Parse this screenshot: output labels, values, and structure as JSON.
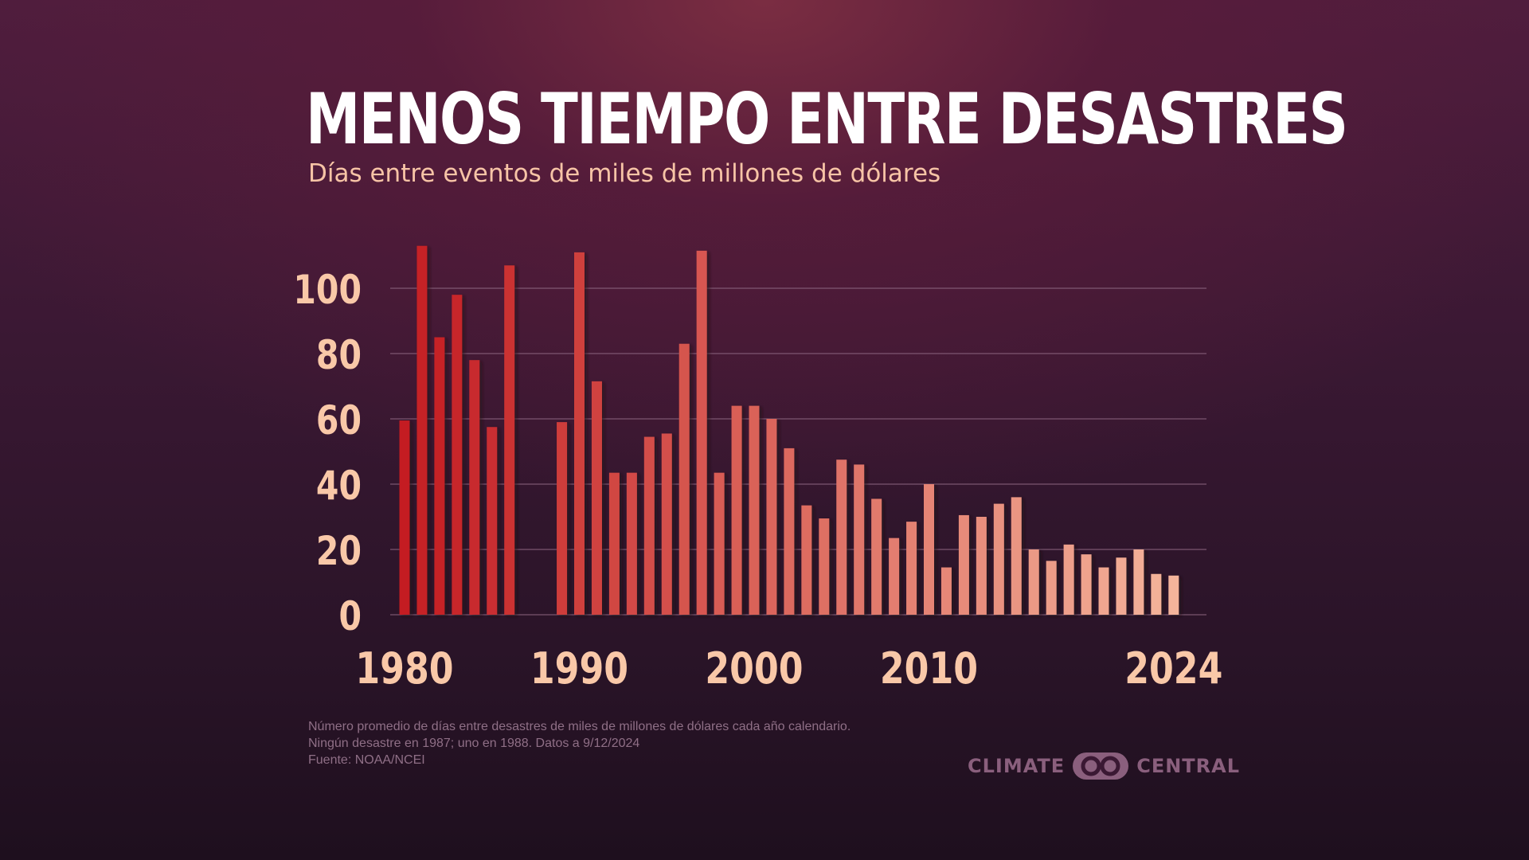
{
  "title": "MENOS TIEMPO ENTRE DESASTRES",
  "subtitle": "Días entre eventos de miles de millones de dólares",
  "notes": [
    "Número promedio de días entre desastres de miles de millones de dólares cada año calendario.",
    "Ningún desastre en 1987; uno en 1988. Datos a 9/12/2024",
    "Fuente: NOAA/NCEI"
  ],
  "logo": {
    "left_text": "CLIMATE",
    "right_text": "CENTRAL",
    "icon": "climate-central-logo-icon"
  },
  "colors": {
    "bar_start": "#c41d22",
    "bar_end": "#f4b49b",
    "tick_text": "#f9c8a8",
    "grid": "#8c6580"
  },
  "chart_data": {
    "type": "bar",
    "title": "MENOS TIEMPO ENTRE DESASTRES",
    "subtitle": "Días entre eventos de miles de millones de dólares",
    "xlabel": "",
    "ylabel": "",
    "ylim": [
      0,
      110
    ],
    "yticks": [
      0,
      20,
      40,
      60,
      80,
      100
    ],
    "xtick_labels": [
      "1980",
      "1990",
      "2000",
      "2010",
      "2024"
    ],
    "grid": true,
    "legend": "none",
    "categories": [
      1980,
      1981,
      1982,
      1983,
      1984,
      1985,
      1986,
      1987,
      1988,
      1989,
      1990,
      1991,
      1992,
      1993,
      1994,
      1995,
      1996,
      1997,
      1998,
      1999,
      2000,
      2001,
      2002,
      2003,
      2004,
      2005,
      2006,
      2007,
      2008,
      2009,
      2010,
      2011,
      2012,
      2013,
      2014,
      2015,
      2016,
      2017,
      2018,
      2019,
      2020,
      2021,
      2022,
      2023,
      2024
    ],
    "values": [
      59.5,
      113,
      85,
      98,
      78,
      57.5,
      107,
      null,
      null,
      59,
      111,
      71.5,
      43.5,
      43.5,
      54.5,
      55.5,
      83,
      111.5,
      43.5,
      64,
      64,
      60,
      51,
      33.5,
      29.5,
      47.5,
      46,
      35.5,
      23.5,
      28.5,
      40,
      14.5,
      30.5,
      30,
      34,
      36,
      20,
      16.5,
      21.5,
      18.5,
      14.5,
      17.5,
      20,
      12.5,
      12
    ]
  }
}
